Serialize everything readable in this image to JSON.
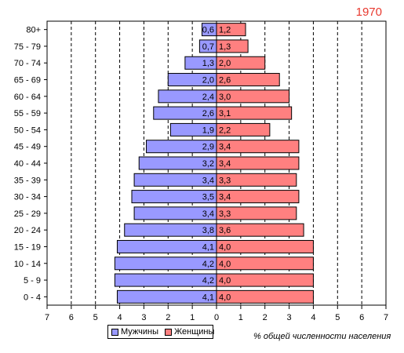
{
  "chart_data": {
    "type": "bar",
    "title": "1970",
    "xlabel": "% общей численности населения",
    "ylabel": "",
    "categories": [
      "80+",
      "75 - 79",
      "70 - 74",
      "65 - 69",
      "60 - 64",
      "55 - 59",
      "50 - 54",
      "45 - 49",
      "40 - 44",
      "35 - 39",
      "30 - 34",
      "25 - 29",
      "20 - 24",
      "15 - 19",
      "10 - 14",
      "5 - 9",
      "0 - 4"
    ],
    "series": [
      {
        "name": "Мужчины",
        "color": "#9999ff",
        "values": [
          0.6,
          0.7,
          1.3,
          2.0,
          2.4,
          2.6,
          1.9,
          2.9,
          3.2,
          3.4,
          3.5,
          3.4,
          3.8,
          4.1,
          4.2,
          4.2,
          4.1
        ],
        "labels": [
          "0,6",
          "0,7",
          "1,3",
          "2,0",
          "2,4",
          "2,6",
          "1,9",
          "2,9",
          "3,2",
          "3,4",
          "3,5",
          "3,4",
          "3,8",
          "4,1",
          "4,2",
          "4,2",
          "4,1"
        ]
      },
      {
        "name": "Женщины",
        "color": "#ff8080",
        "values": [
          1.2,
          1.3,
          2.0,
          2.6,
          3.0,
          3.1,
          2.2,
          3.4,
          3.4,
          3.3,
          3.4,
          3.3,
          3.6,
          4.0,
          4.0,
          4.0,
          4.0
        ],
        "labels": [
          "1,2",
          "1,3",
          "2,0",
          "2,6",
          "3,0",
          "3,1",
          "2,2",
          "3,4",
          "3,4",
          "3,3",
          "3,4",
          "3,3",
          "3,6",
          "4,0",
          "4,0",
          "4,0",
          "4,0"
        ]
      }
    ],
    "xlim": [
      -7,
      7
    ],
    "xticks": [
      "7",
      "6",
      "5",
      "4",
      "3",
      "2",
      "1",
      "0",
      "1",
      "2",
      "3",
      "4",
      "5",
      "6",
      "7"
    ],
    "grid": "vertical dashed",
    "legend_position": "bottom-left"
  }
}
